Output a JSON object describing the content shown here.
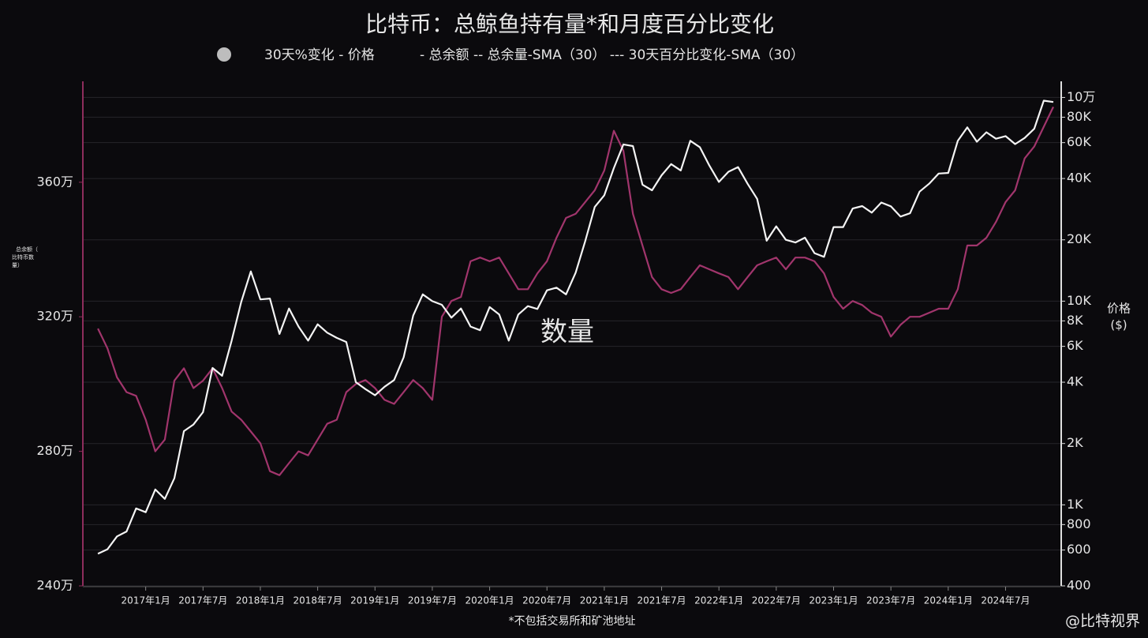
{
  "chart_data": {
    "type": "line",
    "title": "比特币：总鲸鱼持有量*和月度百分比变化",
    "legend": [
      "30天%变化 - 价格",
      "- 总余额 -- 总余量-SMA（30） --- 30天百分比变化-SMA（30）"
    ],
    "y_label_lines": [
      "总余额（",
      "比特币数",
      "量）"
    ],
    "y2_label_lines": [
      "价格",
      "($)"
    ],
    "annotation": "数量",
    "footnote": "*不包括交易所和矿池地址",
    "credit": "@比特视界",
    "x": [
      "2016-08",
      "2016-09",
      "2016-10",
      "2016-11",
      "2016-12",
      "2017-01",
      "2017-02",
      "2017-03",
      "2017-04",
      "2017-05",
      "2017-06",
      "2017-07",
      "2017-08",
      "2017-09",
      "2017-10",
      "2017-11",
      "2017-12",
      "2018-01",
      "2018-02",
      "2018-03",
      "2018-04",
      "2018-05",
      "2018-06",
      "2018-07",
      "2018-08",
      "2018-09",
      "2018-10",
      "2018-11",
      "2018-12",
      "2019-01",
      "2019-02",
      "2019-03",
      "2019-04",
      "2019-05",
      "2019-06",
      "2019-07",
      "2019-08",
      "2019-09",
      "2019-10",
      "2019-11",
      "2019-12",
      "2020-01",
      "2020-02",
      "2020-03",
      "2020-04",
      "2020-05",
      "2020-06",
      "2020-07",
      "2020-08",
      "2020-09",
      "2020-10",
      "2020-11",
      "2020-12",
      "2021-01",
      "2021-02",
      "2021-03",
      "2021-04",
      "2021-05",
      "2021-06",
      "2021-07",
      "2021-08",
      "2021-09",
      "2021-10",
      "2021-11",
      "2021-12",
      "2022-01",
      "2022-02",
      "2022-03",
      "2022-04",
      "2022-05",
      "2022-06",
      "2022-07",
      "2022-08",
      "2022-09",
      "2022-10",
      "2022-11",
      "2022-12",
      "2023-01",
      "2023-02",
      "2023-03",
      "2023-04",
      "2023-05",
      "2023-06",
      "2023-07",
      "2023-08",
      "2023-09",
      "2023-10",
      "2023-11",
      "2023-12",
      "2024-01",
      "2024-02",
      "2024-03",
      "2024-04",
      "2024-05",
      "2024-06",
      "2024-07",
      "2024-08",
      "2024-09",
      "2024-10",
      "2024-11",
      "2024-12"
    ],
    "xlim": [
      "2016-07",
      "2024-12"
    ],
    "xticks": [
      {
        "value": "2017-01",
        "label": "2017年1月"
      },
      {
        "value": "2017-07",
        "label": "2017年7月"
      },
      {
        "value": "2018-01",
        "label": "2018年1月"
      },
      {
        "value": "2018-07",
        "label": "2018年7月"
      },
      {
        "value": "2019-01",
        "label": "2019年1月"
      },
      {
        "value": "2019-07",
        "label": "2019年7月"
      },
      {
        "value": "2020-01",
        "label": "2020年1月"
      },
      {
        "value": "2020-07",
        "label": "2020年7月"
      },
      {
        "value": "2021-01",
        "label": "2021年1月"
      },
      {
        "value": "2021-07",
        "label": "2021年7月"
      },
      {
        "value": "2022-01",
        "label": "2022年1月"
      },
      {
        "value": "2022-07",
        "label": "2022年7月"
      },
      {
        "value": "2023-01",
        "label": "2023年1月"
      },
      {
        "value": "2023-07",
        "label": "2023年7月"
      },
      {
        "value": "2024-01",
        "label": "2024年1月"
      },
      {
        "value": "2024-07",
        "label": "2024年7月"
      }
    ],
    "ylim": [
      2400000,
      3900000
    ],
    "yticks": [
      {
        "value": 2400000,
        "label": "240万"
      },
      {
        "value": 2800000,
        "label": "280万"
      },
      {
        "value": 3200000,
        "label": "320万"
      },
      {
        "value": 3600000,
        "label": "360万"
      }
    ],
    "y2lim": [
      400,
      120000
    ],
    "y2_log": true,
    "y2ticks": [
      400,
      600,
      800,
      {
        "value": 1000,
        "label": "1K"
      },
      {
        "value": 2000,
        "label": "2K"
      },
      {
        "value": 4000,
        "label": "4K"
      },
      {
        "value": 6000,
        "label": "6K"
      },
      {
        "value": 8000,
        "label": "8K"
      },
      {
        "value": 10000,
        "label": "10K"
      },
      {
        "value": 20000,
        "label": "20K"
      },
      {
        "value": 40000,
        "label": "40K"
      },
      {
        "value": 60000,
        "label": "60K"
      },
      {
        "value": 80000,
        "label": "80K"
      },
      {
        "value": 100000,
        "label": "10万"
      }
    ],
    "grid": true,
    "series": [
      {
        "color": "#a1356c",
        "values": [
          3165000,
          3106000,
          3020000,
          2976000,
          2965000,
          2894000,
          2800000,
          2835000,
          3010000,
          3047000,
          2988000,
          3010000,
          3047000,
          2988000,
          2918000,
          2894000,
          2859000,
          2824000,
          2741000,
          2729000,
          2765000,
          2800000,
          2788000,
          2835000,
          2882000,
          2894000,
          2976000,
          3000000,
          3012000,
          2988000,
          2953000,
          2941000,
          2976000,
          3012000,
          2988000,
          2953000,
          3200000,
          3247000,
          3259000,
          3365000,
          3376000,
          3365000,
          3376000,
          3329000,
          3282000,
          3282000,
          3329000,
          3365000,
          3435000,
          3494000,
          3506000,
          3541000,
          3576000,
          3635000,
          3753000,
          3694000,
          3506000,
          3412000,
          3318000,
          3282000,
          3271000,
          3282000,
          3318000,
          3353000,
          3341000,
          3329000,
          3318000,
          3282000,
          3318000,
          3353000,
          3365000,
          3376000,
          3341000,
          3376000,
          3376000,
          3365000,
          3329000,
          3259000,
          3224000,
          3247000,
          3235000,
          3212000,
          3200000,
          3141000,
          3176000,
          3200000,
          3200000,
          3212000,
          3224000,
          3224000,
          3282000,
          3412000,
          3412000,
          3435000,
          3482000,
          3541000,
          3576000,
          3671000,
          3706000,
          3765000,
          3824000
        ]
      },
      {
        "color": "#f4f4f4",
        "axis": "y2",
        "values": [
          575,
          605,
          700,
          740,
          960,
          920,
          1190,
          1070,
          1350,
          2300,
          2480,
          2850,
          4700,
          4300,
          6400,
          9900,
          14000,
          10200,
          10300,
          6900,
          9200,
          7500,
          6400,
          7700,
          7000,
          6600,
          6300,
          4000,
          3700,
          3450,
          3800,
          4100,
          5300,
          8500,
          10800,
          10000,
          9600,
          8300,
          9200,
          7500,
          7200,
          9350,
          8600,
          6400,
          8600,
          9450,
          9150,
          11300,
          11650,
          10800,
          13800,
          19700,
          29000,
          33100,
          45000,
          58800,
          57700,
          37300,
          35000,
          41500,
          47100,
          43800,
          61300,
          57000,
          46300,
          38500,
          43200,
          45500,
          37700,
          31800,
          19800,
          23300,
          20000,
          19400,
          20500,
          17200,
          16500,
          23100,
          23100,
          28500,
          29300,
          27200,
          30500,
          29200,
          26000,
          27000,
          34500,
          37700,
          42300,
          42600,
          61200,
          71300,
          60600,
          67500,
          62700,
          64600,
          59000,
          63300,
          70200,
          96400,
          95000
        ]
      }
    ]
  }
}
